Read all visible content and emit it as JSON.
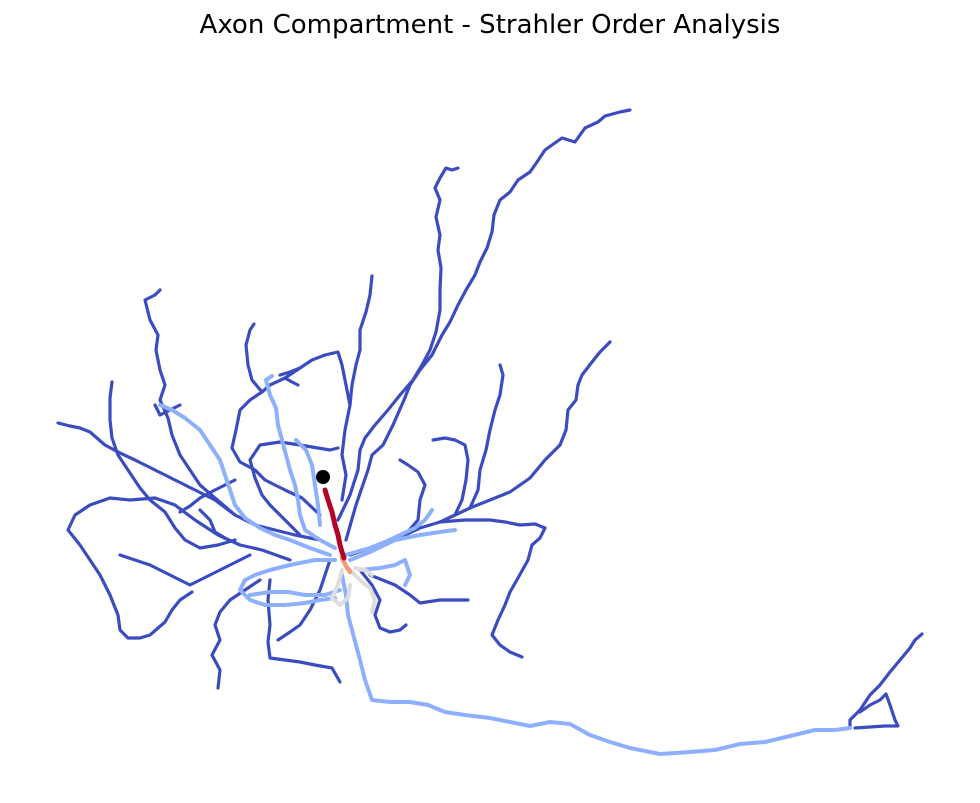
{
  "figure": {
    "title": "Axon Compartment - Strahler Order Analysis"
  },
  "colors": {
    "order_1": "#3b4cc0",
    "order_2": "#8db0fe",
    "order_3": "#dddddd",
    "order_4": "#f49a7b",
    "order_5": "#b40426",
    "soma": "#000000"
  },
  "chart_data": {
    "type": "neuron-morphology",
    "colormap": "coolwarm",
    "axes_visible": false,
    "grid": false,
    "legend": "none",
    "markers": [
      "soma"
    ]
  }
}
